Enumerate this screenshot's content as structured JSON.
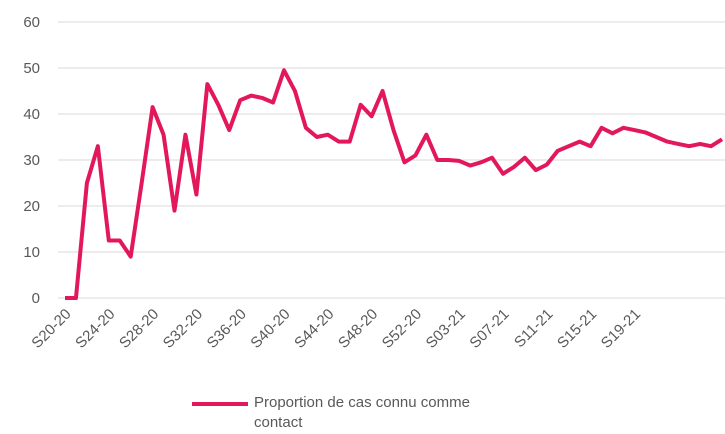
{
  "chart_data": {
    "type": "line",
    "categories": [
      "S20-20",
      null,
      null,
      null,
      "S24-20",
      null,
      null,
      null,
      "S28-20",
      null,
      null,
      null,
      "S32-20",
      null,
      null,
      null,
      "S36-20",
      null,
      null,
      null,
      "S40-20",
      null,
      null,
      null,
      "S44-20",
      null,
      null,
      null,
      "S48-20",
      null,
      null,
      null,
      "S52-20",
      null,
      null,
      null,
      "S03-21",
      null,
      null,
      null,
      "S07-21",
      null,
      null,
      null,
      "S11-21",
      null,
      null,
      null,
      "S15-21",
      null,
      null,
      null,
      "S19-21",
      null,
      null,
      null,
      null,
      null,
      null,
      null,
      null
    ],
    "series": [
      {
        "name": "Proportion de cas connu comme contact",
        "color": "#e2185b",
        "values": [
          0,
          0,
          25,
          33,
          12.5,
          12.5,
          9,
          25,
          41.5,
          35.5,
          19,
          35.5,
          22.5,
          46.5,
          42,
          36.5,
          43,
          44,
          43.5,
          42.5,
          49.5,
          45,
          37,
          35,
          35.5,
          34,
          34,
          42,
          39.5,
          45,
          36.5,
          29.5,
          31,
          35.5,
          30,
          30,
          29.8,
          28.8,
          29.5,
          30.5,
          27,
          28.5,
          30.5,
          27.8,
          29,
          32,
          33,
          34,
          33,
          37,
          35.8,
          37,
          36.5,
          36,
          35,
          34,
          33.5,
          33,
          33.5,
          33,
          34.5
        ]
      }
    ],
    "ylim": [
      0,
      60
    ],
    "yticks": [
      0,
      10,
      20,
      30,
      40,
      50,
      60
    ],
    "grid": true,
    "legend": "bottom"
  }
}
